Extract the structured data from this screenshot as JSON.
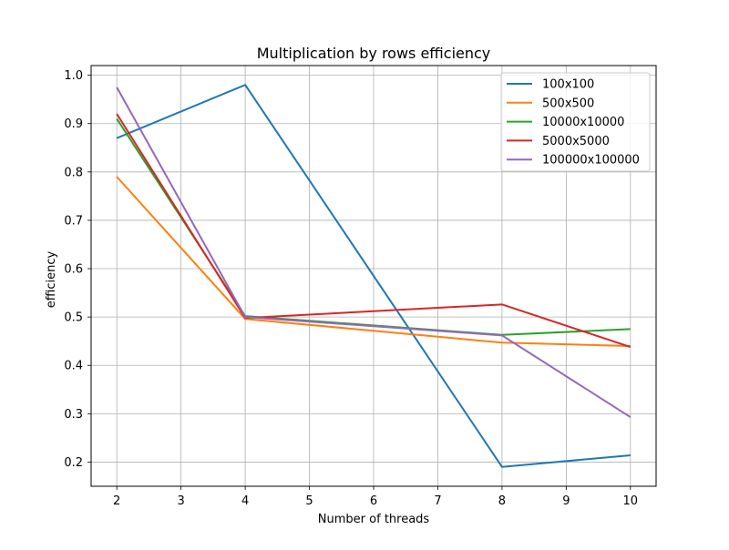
{
  "chart_data": {
    "type": "line",
    "title": "Multiplication by rows efficiency",
    "xlabel": "Number of threads",
    "ylabel": "efficiency",
    "x": [
      2,
      4,
      8,
      10
    ],
    "xticks": [
      2,
      3,
      4,
      5,
      6,
      7,
      8,
      9,
      10
    ],
    "yticks": [
      0.2,
      0.3,
      0.4,
      0.5,
      0.6,
      0.7,
      0.8,
      0.9,
      1.0
    ],
    "xlim": [
      1.6,
      10.4
    ],
    "ylim": [
      0.15,
      1.02
    ],
    "grid": true,
    "legend_position": "top-right",
    "series": [
      {
        "name": "100x100",
        "color": "#1f77b4",
        "values": [
          0.87,
          0.98,
          0.19,
          0.214
        ]
      },
      {
        "name": "500x500",
        "color": "#ff7f0e",
        "values": [
          0.79,
          0.496,
          0.447,
          0.44
        ]
      },
      {
        "name": "10000x10000",
        "color": "#2ca02c",
        "values": [
          0.91,
          0.502,
          0.463,
          0.475
        ]
      },
      {
        "name": "5000x5000",
        "color": "#d62728",
        "values": [
          0.92,
          0.498,
          0.526,
          0.438
        ]
      },
      {
        "name": "100000x100000",
        "color": "#9467bd",
        "values": [
          0.975,
          0.5,
          0.462,
          0.293
        ]
      }
    ]
  }
}
